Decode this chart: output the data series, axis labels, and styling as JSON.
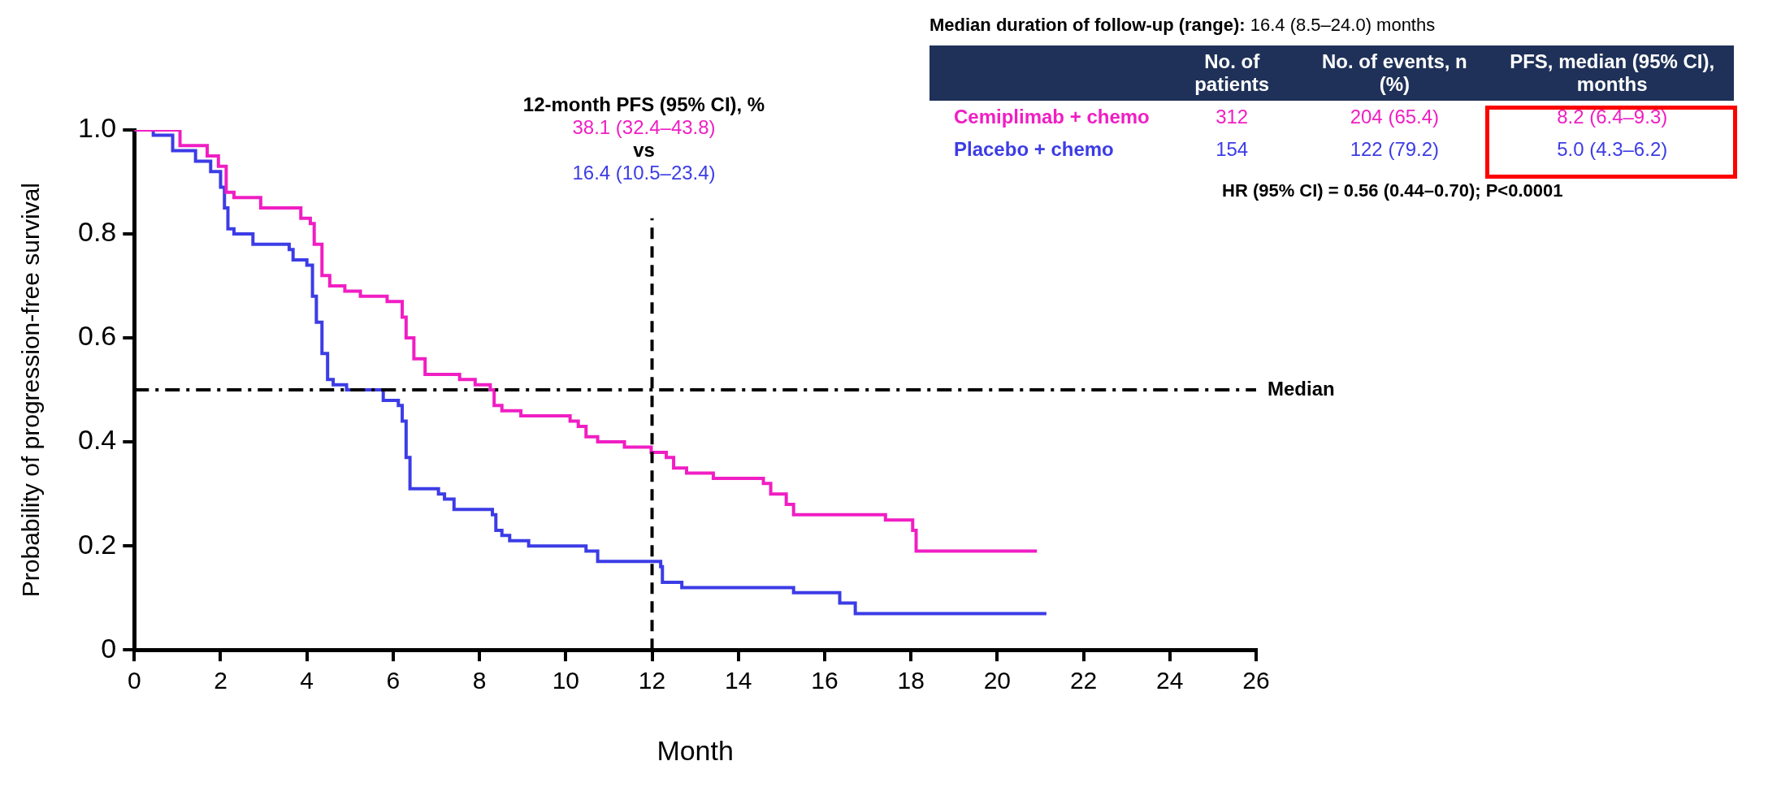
{
  "chart_data": {
    "type": "step",
    "xlabel": "Month",
    "ylabel": "Probability of progression-free survival",
    "xlim": [
      0,
      26
    ],
    "xticks": [
      0,
      2,
      4,
      6,
      8,
      10,
      12,
      14,
      16,
      18,
      20,
      22,
      24,
      26
    ],
    "ylim": [
      0,
      1
    ],
    "yticks": [
      0,
      0.2,
      0.4,
      0.6,
      0.8,
      {
        "value": 1,
        "label": "1.0"
      }
    ],
    "grid": false,
    "legend": "top right",
    "marker": "none",
    "line_style": "solid",
    "series": [
      {
        "name": "Cemiplimab + chemo",
        "color": "#f01ec3",
        "x": [
          0,
          0.5,
          1.06,
          1.69,
          1.95,
          2.13,
          2.31,
          2.93,
          3.46,
          3.86,
          4.08,
          4.17,
          4.35,
          4.53,
          4.88,
          5.24,
          5.86,
          6.21,
          6.3,
          6.48,
          6.74,
          7.54,
          7.9,
          8.25,
          8.34,
          8.52,
          8.96,
          10.1,
          10.29,
          10.47,
          10.74,
          11.36,
          11.98,
          12.33,
          12.5,
          12.8,
          13.42,
          14.58,
          14.75,
          15.11,
          15.28,
          17.33,
          17.41,
          17.94,
          18.04,
          18.12,
          20.92
        ],
        "values": [
          1,
          1,
          0.97,
          0.95,
          0.93,
          0.88,
          0.87,
          0.85,
          0.85,
          0.83,
          0.82,
          0.78,
          0.72,
          0.7,
          0.69,
          0.68,
          0.67,
          0.64,
          0.6,
          0.56,
          0.53,
          0.52,
          0.51,
          0.5,
          0.47,
          0.46,
          0.45,
          0.44,
          0.43,
          0.41,
          0.4,
          0.39,
          0.38,
          0.37,
          0.35,
          0.34,
          0.33,
          0.32,
          0.3,
          0.28,
          0.26,
          0.26,
          0.25,
          0.25,
          0.23,
          0.19,
          0.19
        ]
      },
      {
        "name": "Placebo + chemo",
        "color": "#3c3ce6",
        "x": [
          0,
          0.44,
          0.89,
          1.42,
          1.77,
          2,
          2.09,
          2.17,
          2.31,
          2.75,
          3.59,
          3.68,
          4,
          4.13,
          4.22,
          4.35,
          4.48,
          4.61,
          4.92,
          5.59,
          5.77,
          6.12,
          6.21,
          6.3,
          6.39,
          7.05,
          7.19,
          7.41,
          8.3,
          8.38,
          8.52,
          8.7,
          9.14,
          10.29,
          10.47,
          10.74,
          12.2,
          12.24,
          12.69,
          15.28,
          16.35,
          16.66,
          16.71,
          21.14
        ],
        "values": [
          1,
          0.99,
          0.96,
          0.94,
          0.92,
          0.89,
          0.85,
          0.81,
          0.8,
          0.78,
          0.77,
          0.75,
          0.74,
          0.68,
          0.63,
          0.57,
          0.52,
          0.51,
          0.5,
          0.5,
          0.48,
          0.47,
          0.44,
          0.37,
          0.31,
          0.3,
          0.29,
          0.27,
          0.26,
          0.23,
          0.22,
          0.21,
          0.2,
          0.2,
          0.19,
          0.17,
          0.16,
          0.13,
          0.12,
          0.11,
          0.09,
          0.09,
          0.07,
          0.07
        ]
      }
    ],
    "ref_lines": [
      {
        "axis": "y",
        "value": 0.5,
        "label": "Median",
        "color": "#000000",
        "line_style": "dashed"
      },
      {
        "axis": "x",
        "value": 12,
        "color": "#000000",
        "line_style": "dashed"
      }
    ],
    "annotations": [
      "Median duration of follow-up (range): 16.4 (8.5–24.0) months",
      "No. of patients",
      "No. of events, n (%)",
      "PFS, median (95% CI), months",
      "312",
      "204 (65.4)",
      "8.2 (6.4–9.3)",
      "154",
      "122 (79.2)",
      "5.0 (4.3–6.2)",
      "HR (95% CI) = 0.56 (0.44–0.70); P<0.0001",
      "12-month PFS (95% CI), %",
      "38.1 (32.4–43.8)",
      "vs",
      "16.4 (10.5–23.4)"
    ]
  }
}
